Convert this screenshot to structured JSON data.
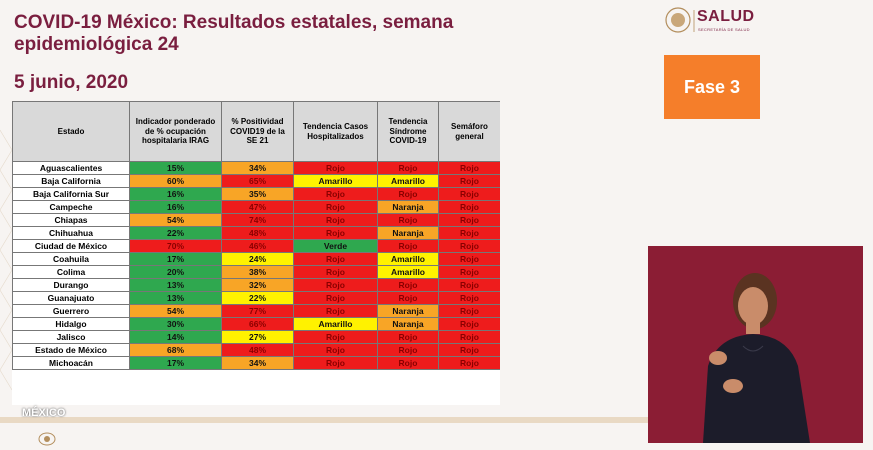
{
  "slide": {
    "title": "COVID-19 México: Resultados estatales, semana epidemiológica 24",
    "date": "5 junio, 2020",
    "fase_label": "Fase 3",
    "logo_text": "SALUD",
    "logo_subtext": "SECRETARÍA DE SALUD",
    "footer_logo": "MÉXICO"
  },
  "table": {
    "headers": [
      "Estado",
      "Indicador ponderado de % ocupación hospitalaria IRAG",
      "% Positividad COVID19 de la SE 21",
      "Tendencia Casos Hospitalizados",
      "Tendencia Síndrome COVID-19",
      "Semáforo general"
    ],
    "rows": [
      {
        "estado": "Aguascalientes",
        "ocupacion": "15%",
        "ocupacion_color": "verde",
        "positividad": "34%",
        "positividad_color": "naranja",
        "hosp": "Rojo",
        "hosp_color": "rojo",
        "sindrome": "Rojo",
        "sindrome_color": "rojo",
        "semaforo": "Rojo",
        "semaforo_color": "rojo"
      },
      {
        "estado": "Baja California",
        "ocupacion": "60%",
        "ocupacion_color": "naranja",
        "positividad": "65%",
        "positividad_color": "rojo",
        "hosp": "Amarillo",
        "hosp_color": "amarillo",
        "sindrome": "Amarillo",
        "sindrome_color": "amarillo",
        "semaforo": "Rojo",
        "semaforo_color": "rojo"
      },
      {
        "estado": "Baja California Sur",
        "ocupacion": "16%",
        "ocupacion_color": "verde",
        "positividad": "35%",
        "positividad_color": "naranja",
        "hosp": "Rojo",
        "hosp_color": "rojo",
        "sindrome": "Rojo",
        "sindrome_color": "rojo",
        "semaforo": "Rojo",
        "semaforo_color": "rojo"
      },
      {
        "estado": "Campeche",
        "ocupacion": "16%",
        "ocupacion_color": "verde",
        "positividad": "47%",
        "positividad_color": "rojo",
        "hosp": "Rojo",
        "hosp_color": "rojo",
        "sindrome": "Naranja",
        "sindrome_color": "naranja",
        "semaforo": "Rojo",
        "semaforo_color": "rojo"
      },
      {
        "estado": "Chiapas",
        "ocupacion": "54%",
        "ocupacion_color": "naranja",
        "positividad": "74%",
        "positividad_color": "rojo",
        "hosp": "Rojo",
        "hosp_color": "rojo",
        "sindrome": "Rojo",
        "sindrome_color": "rojo",
        "semaforo": "Rojo",
        "semaforo_color": "rojo"
      },
      {
        "estado": "Chihuahua",
        "ocupacion": "22%",
        "ocupacion_color": "verde",
        "positividad": "48%",
        "positividad_color": "rojo",
        "hosp": "Rojo",
        "hosp_color": "rojo",
        "sindrome": "Naranja",
        "sindrome_color": "naranja",
        "semaforo": "Rojo",
        "semaforo_color": "rojo"
      },
      {
        "estado": "Ciudad de México",
        "ocupacion": "70%",
        "ocupacion_color": "rojo",
        "positividad": "46%",
        "positividad_color": "rojo",
        "hosp": "Verde",
        "hosp_color": "verde",
        "sindrome": "Rojo",
        "sindrome_color": "rojo",
        "semaforo": "Rojo",
        "semaforo_color": "rojo"
      },
      {
        "estado": "Coahuila",
        "ocupacion": "17%",
        "ocupacion_color": "verde",
        "positividad": "24%",
        "positividad_color": "amarillo",
        "hosp": "Rojo",
        "hosp_color": "rojo",
        "sindrome": "Amarillo",
        "sindrome_color": "amarillo",
        "semaforo": "Rojo",
        "semaforo_color": "rojo"
      },
      {
        "estado": "Colima",
        "ocupacion": "20%",
        "ocupacion_color": "verde",
        "positividad": "38%",
        "positividad_color": "naranja",
        "hosp": "Rojo",
        "hosp_color": "rojo",
        "sindrome": "Amarillo",
        "sindrome_color": "amarillo",
        "semaforo": "Rojo",
        "semaforo_color": "rojo"
      },
      {
        "estado": "Durango",
        "ocupacion": "13%",
        "ocupacion_color": "verde",
        "positividad": "32%",
        "positividad_color": "naranja",
        "hosp": "Rojo",
        "hosp_color": "rojo",
        "sindrome": "Rojo",
        "sindrome_color": "rojo",
        "semaforo": "Rojo",
        "semaforo_color": "rojo"
      },
      {
        "estado": "Guanajuato",
        "ocupacion": "13%",
        "ocupacion_color": "verde",
        "positividad": "22%",
        "positividad_color": "amarillo",
        "hosp": "Rojo",
        "hosp_color": "rojo",
        "sindrome": "Rojo",
        "sindrome_color": "rojo",
        "semaforo": "Rojo",
        "semaforo_color": "rojo"
      },
      {
        "estado": "Guerrero",
        "ocupacion": "54%",
        "ocupacion_color": "naranja",
        "positividad": "77%",
        "positividad_color": "rojo",
        "hosp": "Rojo",
        "hosp_color": "rojo",
        "sindrome": "Naranja",
        "sindrome_color": "naranja",
        "semaforo": "Rojo",
        "semaforo_color": "rojo"
      },
      {
        "estado": "Hidalgo",
        "ocupacion": "30%",
        "ocupacion_color": "verde",
        "positividad": "66%",
        "positividad_color": "rojo",
        "hosp": "Amarillo",
        "hosp_color": "amarillo",
        "sindrome": "Naranja",
        "sindrome_color": "naranja",
        "semaforo": "Rojo",
        "semaforo_color": "rojo"
      },
      {
        "estado": "Jalisco",
        "ocupacion": "14%",
        "ocupacion_color": "verde",
        "positividad": "27%",
        "positividad_color": "amarillo",
        "hosp": "Rojo",
        "hosp_color": "rojo",
        "sindrome": "Rojo",
        "sindrome_color": "rojo",
        "semaforo": "Rojo",
        "semaforo_color": "rojo"
      },
      {
        "estado": "Estado de México",
        "ocupacion": "68%",
        "ocupacion_color": "naranja",
        "positividad": "48%",
        "positividad_color": "rojo",
        "hosp": "Rojo",
        "hosp_color": "rojo",
        "sindrome": "Rojo",
        "sindrome_color": "rojo",
        "semaforo": "Rojo",
        "semaforo_color": "rojo"
      },
      {
        "estado": "Michoacán",
        "ocupacion": "17%",
        "ocupacion_color": "verde",
        "positividad": "34%",
        "positividad_color": "naranja",
        "hosp": "Rojo",
        "hosp_color": "rojo",
        "sindrome": "Rojo",
        "sindrome_color": "rojo",
        "semaforo": "Rojo",
        "semaforo_color": "rojo"
      }
    ]
  },
  "colors": {
    "title": "#7a1e3f",
    "fase_bg": "#f57e2a",
    "verde": "#2fa84f",
    "amarillo": "#fff200",
    "naranja": "#f8a526",
    "rojo": "#ee1c1c",
    "video_bg": "#8b1d34"
  },
  "icons": {
    "logo": "salud-emblem-icon",
    "footer": "mexico-emblem-icon"
  }
}
